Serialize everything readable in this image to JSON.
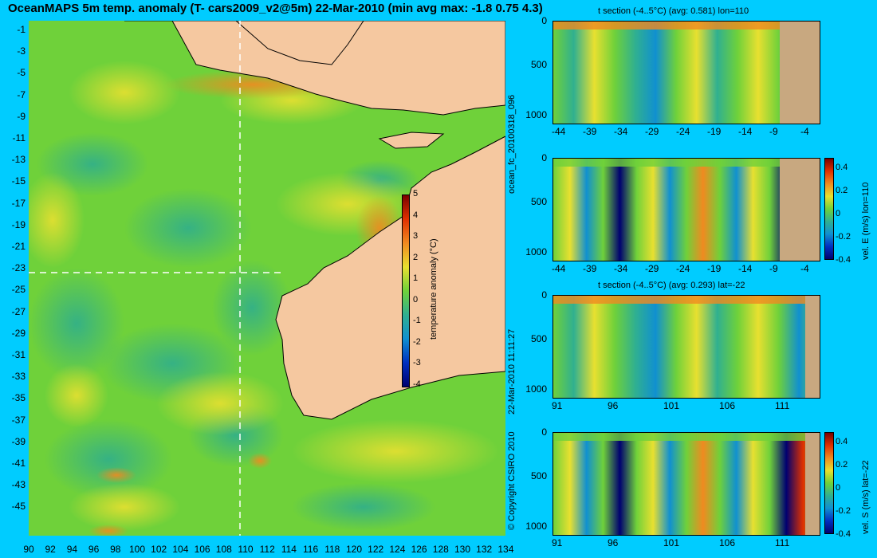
{
  "title": "OceanMAPS 5m temp. anomaly (T- cars2009_v2@5m) 22-Mar-2010 (min avg max: -1.8 0.75 4.3)",
  "map": {
    "lat_ticks": [
      "-1",
      "-3",
      "-5",
      "-7",
      "-9",
      "-11",
      "-13",
      "-15",
      "-17",
      "-19",
      "-21",
      "-23",
      "-25",
      "-27",
      "-29",
      "-31",
      "-33",
      "-35",
      "-37",
      "-39",
      "-41",
      "-43",
      "-45"
    ],
    "lon_ticks": [
      "90",
      "92",
      "94",
      "96",
      "98",
      "100",
      "102",
      "104",
      "106",
      "108",
      "110",
      "112",
      "114",
      "116",
      "118",
      "120",
      "122",
      "124",
      "126",
      "128",
      "130",
      "132",
      "134"
    ],
    "colorbar": {
      "label": "temperature anomaly (°C)",
      "ticks": [
        "5",
        "4",
        "3",
        "2",
        "1",
        "0",
        "-1",
        "-2",
        "-3",
        "-4"
      ]
    },
    "colors": {
      "land": "#f5c8a0",
      "sea": "#6fd13a",
      "warm": "#f0e030",
      "cool": "#38b68a"
    }
  },
  "sections": [
    {
      "title": "t section (-4..5°C) (avg: 0.581) lon=110",
      "depth_ticks": [
        "0",
        "500",
        "1000"
      ],
      "x_ticks": [
        "-44",
        "-39",
        "-34",
        "-29",
        "-24",
        "-19",
        "-14",
        "-9",
        "-4"
      ]
    },
    {
      "title": "",
      "right_label": "vel. E (m/s) lon=110",
      "depth_ticks": [
        "0",
        "500",
        "1000"
      ],
      "x_ticks": [
        "-44",
        "-39",
        "-34",
        "-29",
        "-24",
        "-19",
        "-14",
        "-9",
        "-4"
      ],
      "colorbar_ticks": [
        "0.4",
        "0.2",
        "0",
        "-0.2",
        "-0.4"
      ]
    },
    {
      "title": "t section (-4..5°C) (avg: 0.293) lat=-22",
      "depth_ticks": [
        "0",
        "500",
        "1000"
      ],
      "x_ticks": [
        "91",
        "96",
        "101",
        "106",
        "111"
      ]
    },
    {
      "title": "",
      "right_label": "vel. S (m/s) lat=-22",
      "depth_ticks": [
        "0",
        "500",
        "1000"
      ],
      "x_ticks": [
        "91",
        "96",
        "101",
        "106",
        "111"
      ],
      "colorbar_ticks": [
        "0.4",
        "0.2",
        "0",
        "-0.2",
        "-0.4"
      ]
    }
  ],
  "side_labels": {
    "forecast": "ocean_fc_20100318_096",
    "timestamp": "22-Mar-2010 11:11:27",
    "copyright": "© Copyright CSIRO 2010"
  }
}
